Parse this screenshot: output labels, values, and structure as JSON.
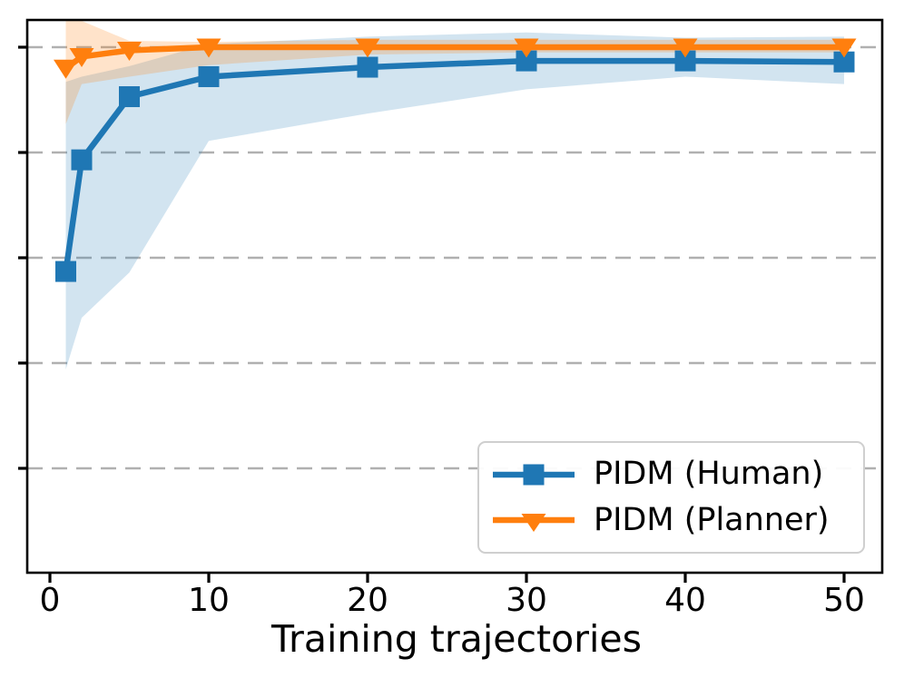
{
  "figure": {
    "background": "#ffffff",
    "frame_color": "#000000",
    "grid_color": "#b0b0b0",
    "y_axis_tick_labels": [],
    "note": "y axis has tick marks but no labels"
  },
  "chart_data": {
    "type": "line",
    "title": "",
    "xlabel": "Training trajectories",
    "ylabel": "",
    "x": [
      1,
      2,
      5,
      10,
      20,
      30,
      40,
      50
    ],
    "x_ticks": [
      0,
      10,
      20,
      30,
      40,
      50
    ],
    "xlim": [
      -1.4,
      52.4
    ],
    "ylim": [
      0.5,
      1.026
    ],
    "y_gridlines": [
      1.0,
      0.9,
      0.8,
      0.7,
      0.6
    ],
    "y_axis_labels_visible": false,
    "grid": "horizontal-dashed",
    "legend_position": "lower right",
    "series": [
      {
        "name": "PIDM (Human)",
        "color": "#1f77b4",
        "band_color": "rgba(31,119,180,0.20)",
        "marker": "square",
        "values": [
          0.787,
          0.893,
          0.953,
          0.972,
          0.981,
          0.987,
          0.987,
          0.986
        ],
        "band_low": [
          0.694,
          0.743,
          0.786,
          0.911,
          0.937,
          0.96,
          0.972,
          0.965
        ],
        "band_high": [
          0.967,
          0.972,
          0.982,
          1.003,
          1.01,
          1.014,
          1.009,
          1.01
        ]
      },
      {
        "name": "PIDM (Planner)",
        "color": "#ff7f0e",
        "band_color": "rgba(255,127,14,0.22)",
        "marker": "triangle-down",
        "values": [
          0.98,
          0.991,
          0.997,
          1.0,
          1.0,
          1.0,
          1.0,
          1.0
        ],
        "band_low": [
          0.927,
          0.965,
          0.972,
          0.983,
          0.993,
          0.995,
          0.995,
          0.995
        ],
        "band_high": [
          1.026,
          1.025,
          1.006,
          1.005,
          1.007,
          1.007,
          1.007,
          1.007
        ]
      }
    ]
  }
}
